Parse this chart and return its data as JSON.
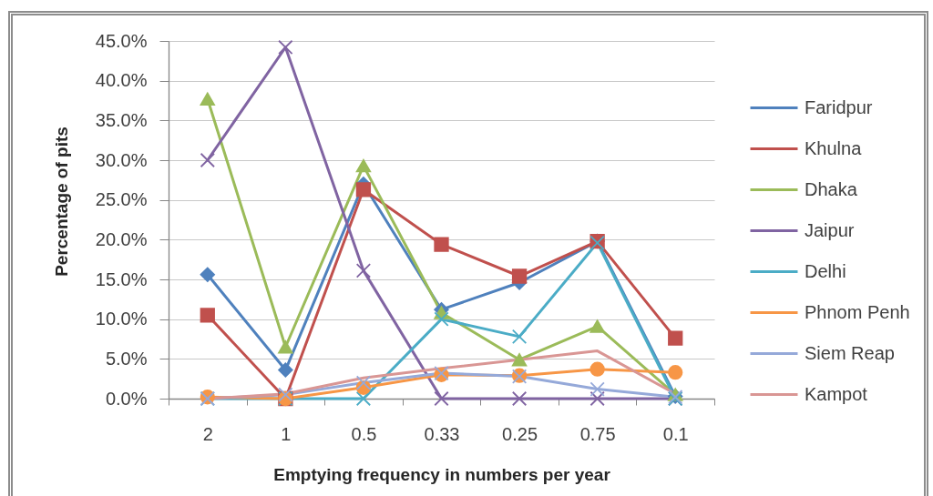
{
  "chart_data": {
    "type": "line",
    "xlabel": "Emptying frequency in numbers per year",
    "ylabel": "Percentage of pits",
    "categories": [
      "2",
      "1",
      "0.5",
      "0.33",
      "0.25",
      "0.75",
      "0.1"
    ],
    "series": [
      {
        "name": "Faridpur",
        "color": "#4f81bd",
        "marker": "diamond",
        "values": [
          15.6,
          3.6,
          27.0,
          11.2,
          14.6,
          19.8,
          0.3
        ]
      },
      {
        "name": "Khulna",
        "color": "#c0504d",
        "marker": "square",
        "values": [
          10.5,
          0,
          26.3,
          19.4,
          15.4,
          19.8,
          7.6
        ]
      },
      {
        "name": "Dhaka",
        "color": "#9bbb59",
        "marker": "triangle",
        "values": [
          37.7,
          6.5,
          29.3,
          10.8,
          4.9,
          9.1,
          0.5
        ]
      },
      {
        "name": "Jaipur",
        "color": "#8064a2",
        "marker": "cross",
        "values": [
          30.0,
          44.2,
          16.1,
          0,
          0,
          0,
          0
        ]
      },
      {
        "name": "Delhi",
        "color": "#4bacc6",
        "marker": "cross",
        "values": [
          0,
          0,
          0,
          10.0,
          7.8,
          19.6,
          0
        ]
      },
      {
        "name": "Phnom Penh",
        "color": "#f79646",
        "marker": "circle",
        "values": [
          0.2,
          0,
          1.4,
          3.0,
          2.9,
          3.7,
          3.3
        ]
      },
      {
        "name": "Siem Reap",
        "color": "#95a9d9",
        "marker": "cross",
        "values": [
          0,
          0.5,
          2.0,
          3.2,
          2.8,
          1.2,
          0.2
        ]
      },
      {
        "name": "Kampot",
        "color": "#d99694",
        "marker": "none",
        "values": [
          0,
          0.6,
          2.6,
          3.8,
          4.9,
          6.0,
          0.6
        ]
      }
    ],
    "ylim": [
      0,
      45
    ],
    "yticks": [
      {
        "value": 0,
        "label": "0.0%"
      },
      {
        "value": 5,
        "label": "5.0%"
      },
      {
        "value": 10,
        "label": "10.0%"
      },
      {
        "value": 15,
        "label": "15.0%"
      },
      {
        "value": 20,
        "label": "20.0%"
      },
      {
        "value": 25,
        "label": "25.0%"
      },
      {
        "value": 30,
        "label": "30.0%"
      },
      {
        "value": 35,
        "label": "35.0%"
      },
      {
        "value": 40,
        "label": "40.0%"
      },
      {
        "value": 45,
        "label": "45.0%"
      }
    ],
    "grid": "y",
    "legend": "right"
  }
}
